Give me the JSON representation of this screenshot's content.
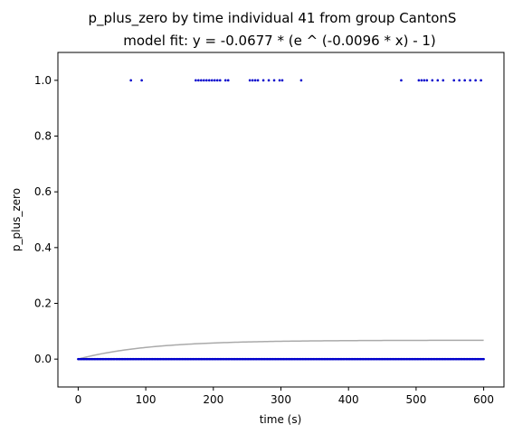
{
  "chart_data": {
    "type": "scatter",
    "title": "p_plus_zero by time individual 41 from group CantonS",
    "subtitle": "model fit: y = -0.0677 * (e ^ (-0.0096 * x) - 1)",
    "xlabel": "time (s)",
    "ylabel": "p_plus_zero",
    "xlim": [
      -30,
      630
    ],
    "ylim": [
      -0.1,
      1.1
    ],
    "xticks": [
      0,
      100,
      200,
      300,
      400,
      500,
      600
    ],
    "yticks": [
      0.0,
      0.2,
      0.4,
      0.6,
      0.8,
      1.0
    ],
    "xtick_labels": [
      "0",
      "100",
      "200",
      "300",
      "400",
      "500",
      "600"
    ],
    "ytick_labels": [
      "0.0",
      "0.2",
      "0.4",
      "0.6",
      "0.8",
      "1.0"
    ],
    "grid": false,
    "points_color": "#0000cc",
    "fit_color": "#aaaaaa",
    "fit": {
      "a": 0.0677,
      "b": 0.0096,
      "x_range": [
        0,
        600
      ]
    },
    "points_one_x": [
      78,
      94,
      174,
      178,
      182,
      186,
      190,
      194,
      198,
      202,
      206,
      210,
      218,
      222,
      254,
      258,
      262,
      266,
      274,
      282,
      290,
      298,
      302,
      330,
      478,
      504,
      508,
      512,
      516,
      524,
      532,
      540,
      556,
      564,
      572,
      580,
      588,
      596
    ],
    "points_zero_x_range": [
      0,
      600
    ],
    "points_zero_step": 2
  }
}
